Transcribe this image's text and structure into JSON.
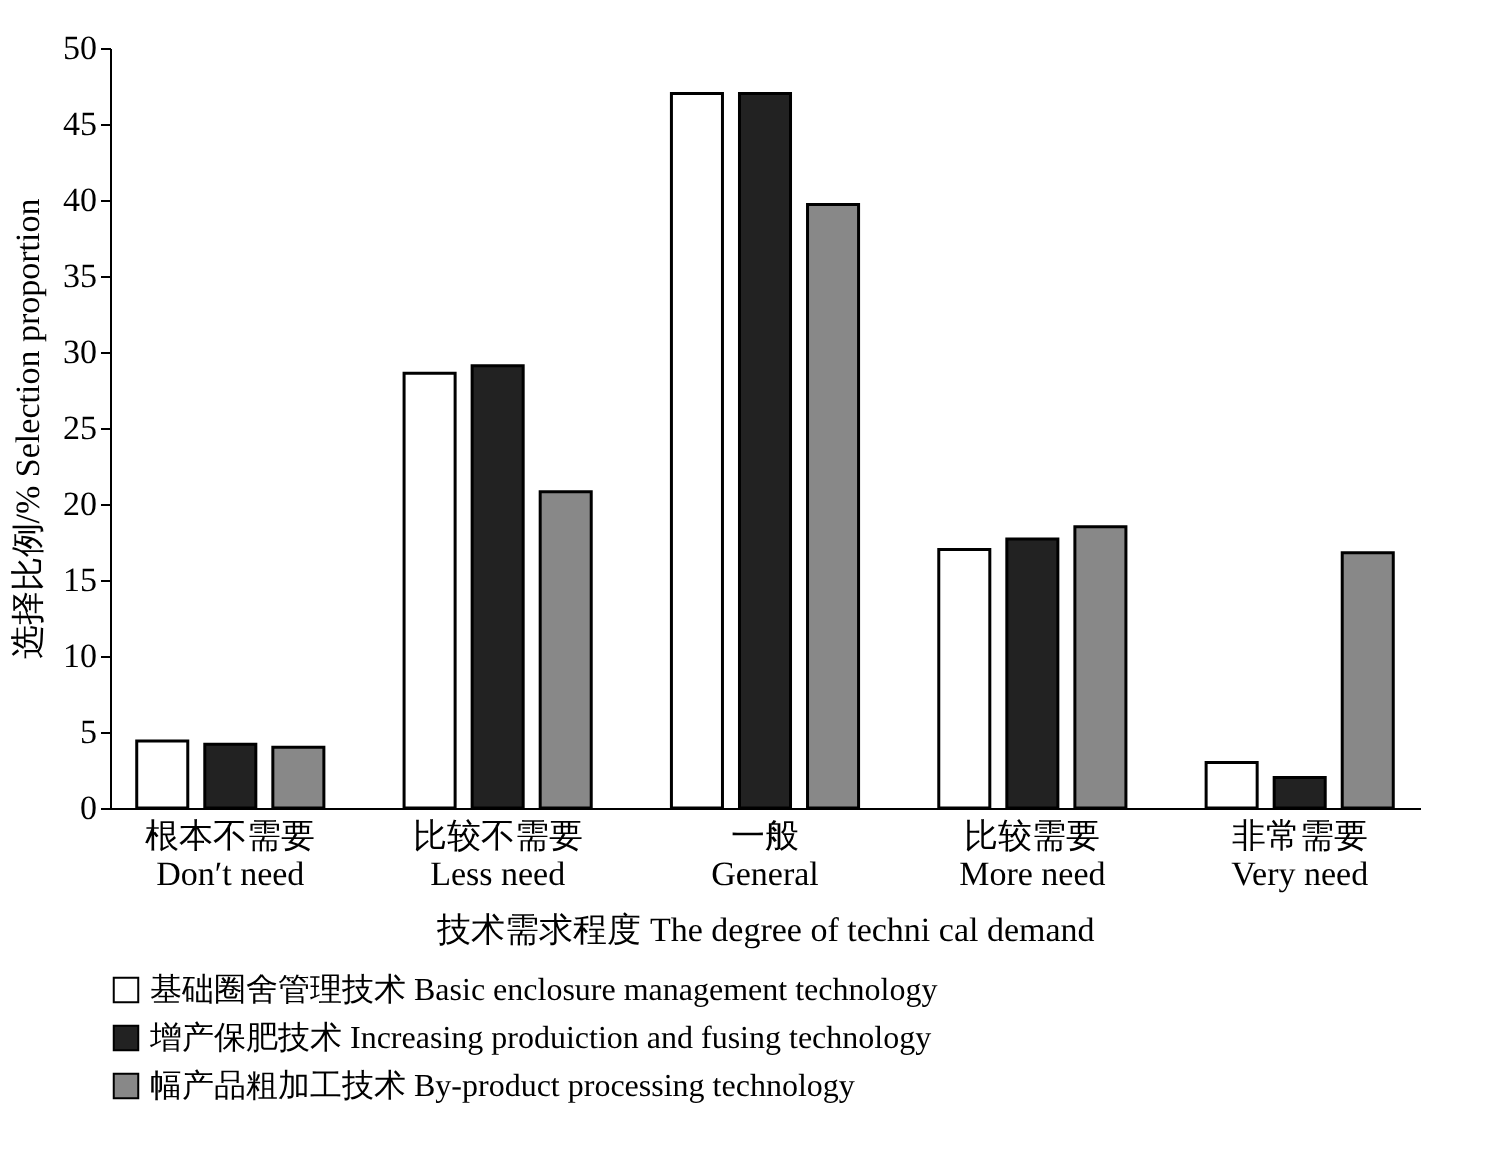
{
  "chart_data": {
    "type": "bar",
    "xlabel": "技术需求程度 The degree of techni cal demand",
    "ylabel": "选择比例/% Selection proportion",
    "categories": [
      "根本不需要\nDon′t need",
      "比较不需要\nLess need",
      "一般\nGeneral",
      "比较需要\nMore need",
      "非常需要\nVery need"
    ],
    "series": [
      {
        "name": "基础圈舍管理技术 Basic enclosure management technology",
        "color": "#ffffff",
        "values": [
          4.4,
          28.6,
          47.0,
          17.0,
          3.0
        ]
      },
      {
        "name": "增产保肥技术 Increasing produiction and fusing technology",
        "color": "#222222",
        "values": [
          4.2,
          29.1,
          47.0,
          17.7,
          2.0
        ]
      },
      {
        "name": "幅产品粗加工技术 By-product processing technology",
        "color": "#888888",
        "values": [
          4.0,
          20.8,
          39.7,
          18.5,
          16.8
        ]
      }
    ],
    "ylim": [
      0,
      50
    ],
    "yticks": [
      0,
      5,
      10,
      15,
      20,
      25,
      30,
      35,
      40,
      45,
      50
    ],
    "grid": false,
    "legend": "bottom"
  }
}
